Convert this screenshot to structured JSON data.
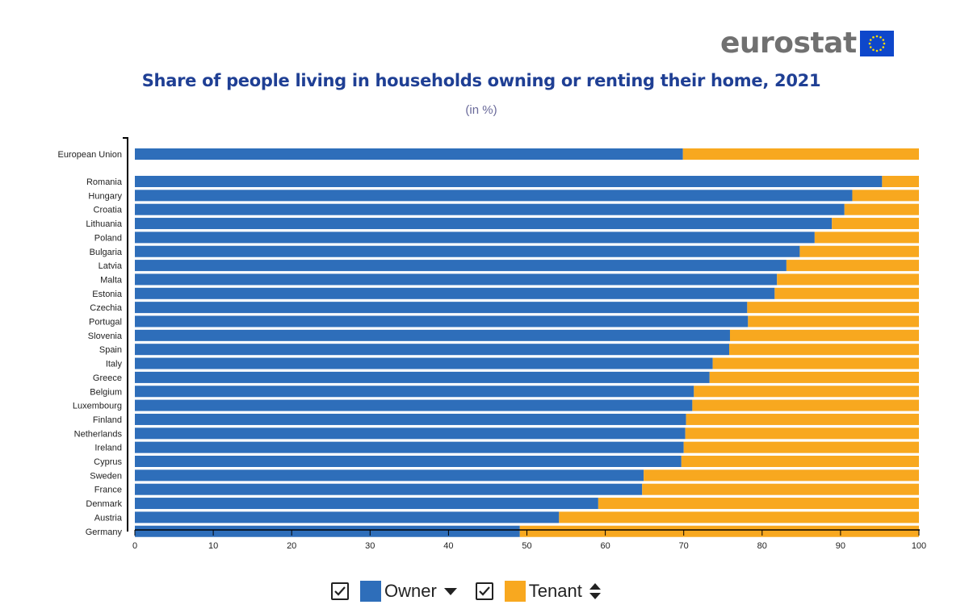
{
  "logo": {
    "text": "eurostat",
    "flag_color": "#0e47cb",
    "star_color": "#ffdd00"
  },
  "chart_data": {
    "type": "bar",
    "stacked": true,
    "orientation": "horizontal",
    "title": "Share of people living in households owning or renting their home, 2021",
    "subtitle": "(in %)",
    "xlim": [
      0,
      100
    ],
    "xticks": [
      0,
      10,
      20,
      30,
      40,
      50,
      60,
      70,
      80,
      90,
      100
    ],
    "categories": [
      "European Union",
      "Romania",
      "Hungary",
      "Croatia",
      "Lithuania",
      "Poland",
      "Bulgaria",
      "Latvia",
      "Malta",
      "Estonia",
      "Czechia",
      "Portugal",
      "Slovenia",
      "Spain",
      "Italy",
      "Greece",
      "Belgium",
      "Luxembourg",
      "Finland",
      "Netherlands",
      "Ireland",
      "Cyprus",
      "Sweden",
      "France",
      "Denmark",
      "Austria",
      "Germany"
    ],
    "series": [
      {
        "name": "Owner",
        "color": "#2e6eba",
        "values": [
          69.9,
          95.3,
          91.5,
          90.5,
          88.9,
          86.7,
          84.8,
          83.1,
          81.9,
          81.6,
          78.1,
          78.2,
          75.9,
          75.8,
          73.7,
          73.3,
          71.3,
          71.1,
          70.3,
          70.2,
          70.0,
          69.7,
          64.9,
          64.7,
          59.1,
          54.1,
          49.1
        ]
      },
      {
        "name": "Tenant",
        "color": "#f8a81f",
        "values": [
          30.1,
          4.7,
          8.5,
          9.5,
          11.1,
          13.3,
          15.2,
          16.9,
          18.1,
          18.4,
          21.9,
          21.8,
          24.1,
          24.2,
          26.3,
          26.7,
          28.7,
          28.9,
          29.7,
          29.8,
          30.0,
          30.3,
          35.1,
          35.3,
          40.9,
          45.9,
          50.9
        ]
      }
    ]
  },
  "legend": {
    "items": [
      {
        "label": "Owner",
        "color": "#2e6eba",
        "sort_icon": "sort-down-icon"
      },
      {
        "label": "Tenant",
        "color": "#f8a81f",
        "sort_icon": "sort-both-icon"
      }
    ]
  }
}
